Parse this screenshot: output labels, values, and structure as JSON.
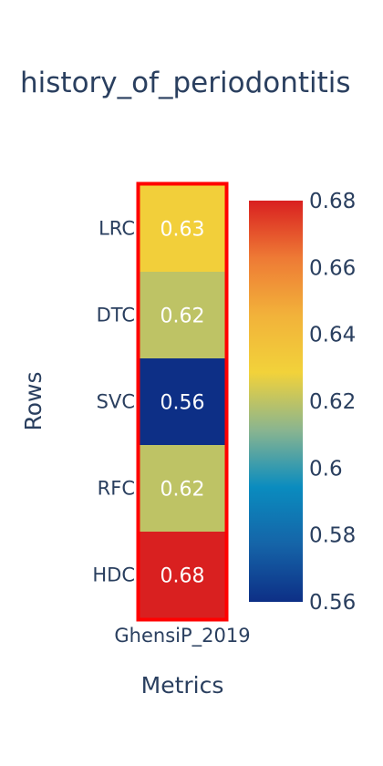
{
  "chart_data": {
    "type": "heatmap",
    "title": "history_of_periodontitis",
    "xlabel": "Metrics",
    "ylabel": "Rows",
    "x_categories": [
      "GhensiP_2019"
    ],
    "y_categories": [
      "LRC",
      "DTC",
      "SVC",
      "RFC",
      "HDC"
    ],
    "values": [
      [
        0.63
      ],
      [
        0.62
      ],
      [
        0.56
      ],
      [
        0.62
      ],
      [
        0.68
      ]
    ],
    "value_labels": [
      "0.63",
      "0.62",
      "0.56",
      "0.62",
      "0.68"
    ],
    "colorbar": {
      "min": 0.56,
      "max": 0.68,
      "ticks": [
        0.56,
        0.58,
        0.6,
        0.62,
        0.64,
        0.66,
        0.68
      ],
      "tick_labels": [
        "0.56",
        "0.58",
        "0.6",
        "0.62",
        "0.64",
        "0.66",
        "0.68"
      ]
    },
    "colorscale": [
      "#0d2f86",
      "#1564a8",
      "#0a8cbf",
      "#8ab58f",
      "#f2d23a",
      "#f2b23a",
      "#ee7a35",
      "#d92020"
    ],
    "highlight_color": "#ff0000"
  }
}
